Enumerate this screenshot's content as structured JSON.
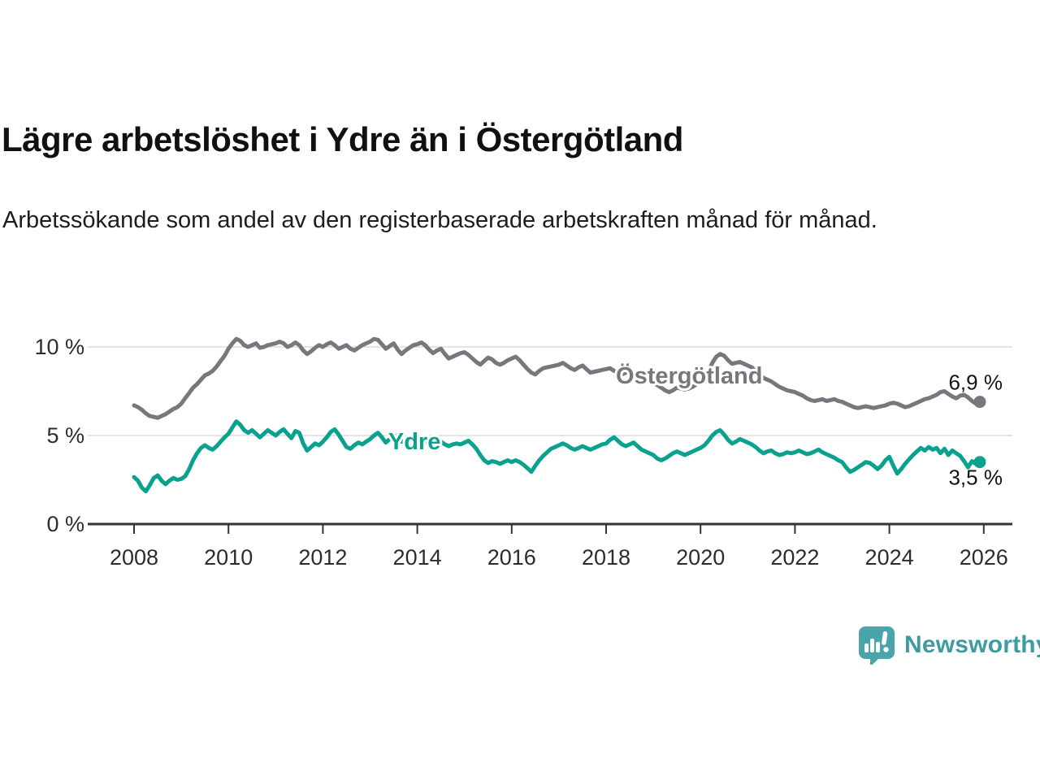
{
  "header": {
    "title": "Lägre arbetslöshet i Ydre än i Östergötland",
    "subtitle": "Arbetssökande som andel av den registerbaserade arbetskraften månad för månad."
  },
  "footer": {
    "brand": "Newsworthy",
    "brand_color": "#3d9ba2",
    "logo_icon": "bar-chart-speech-bubble-icon",
    "logo_color": "#4aa5ab"
  },
  "chart_data": {
    "type": "line",
    "title": "Lägre arbetslöshet i Ydre än i Östergötland",
    "subtitle": "Arbetssökande som andel av den registerbaserade arbetskraften månad för månad.",
    "grid": "horizontal",
    "legend": "inline-labels",
    "x_start_year": 2008,
    "points_per_year": 12,
    "xlim": [
      2007.9,
      2026.6
    ],
    "ylim": [
      0,
      10.9
    ],
    "xticks": [
      2008,
      2010,
      2012,
      2014,
      2016,
      2018,
      2020,
      2022,
      2024,
      2026
    ],
    "yticks": [
      {
        "value": 10,
        "label": "10 %"
      },
      {
        "value": 5,
        "label": "5 %"
      },
      {
        "value": 0,
        "label": "0 %"
      }
    ],
    "colors": {
      "grid": "#dcdcdc",
      "axis": "#333333"
    },
    "series": [
      {
        "name": "Östergötland",
        "color": "#77777d",
        "end_value": 6.9,
        "end_label": "6,9 %",
        "end_label_side": "above",
        "label_at": {
          "year": 2019.76,
          "value": 8.4
        },
        "values": [
          6.7,
          6.6,
          6.45,
          6.25,
          6.1,
          6.05,
          6.0,
          6.1,
          6.2,
          6.35,
          6.5,
          6.6,
          6.8,
          7.1,
          7.4,
          7.7,
          7.9,
          8.15,
          8.4,
          8.5,
          8.65,
          8.9,
          9.2,
          9.5,
          9.9,
          10.2,
          10.45,
          10.35,
          10.1,
          10.0,
          10.1,
          10.2,
          9.95,
          10.0,
          10.1,
          10.15,
          10.2,
          10.3,
          10.2,
          10.0,
          10.1,
          10.25,
          10.1,
          9.8,
          9.6,
          9.75,
          9.95,
          10.1,
          10.0,
          10.15,
          10.25,
          10.1,
          9.9,
          10.0,
          10.1,
          9.9,
          9.8,
          9.95,
          10.1,
          10.2,
          10.3,
          10.45,
          10.4,
          10.15,
          9.9,
          10.05,
          10.2,
          9.85,
          9.6,
          9.8,
          9.95,
          10.1,
          10.15,
          10.25,
          10.1,
          9.85,
          9.65,
          9.8,
          9.9,
          9.6,
          9.35,
          9.45,
          9.55,
          9.65,
          9.7,
          9.55,
          9.35,
          9.15,
          9.0,
          9.2,
          9.4,
          9.3,
          9.1,
          9.0,
          9.1,
          9.25,
          9.35,
          9.45,
          9.25,
          9.0,
          8.75,
          8.55,
          8.45,
          8.65,
          8.8,
          8.85,
          8.9,
          8.95,
          9.0,
          9.1,
          8.95,
          8.8,
          8.7,
          8.85,
          8.95,
          8.75,
          8.55,
          8.6,
          8.65,
          8.7,
          8.75,
          8.8,
          8.65,
          8.55,
          8.45,
          8.55,
          8.6,
          8.4,
          8.2,
          8.1,
          8.05,
          8.0,
          7.95,
          7.85,
          7.7,
          7.55,
          7.45,
          7.55,
          7.7,
          7.65,
          7.6,
          7.65,
          7.75,
          7.9,
          8.1,
          8.2,
          8.6,
          9.1,
          9.45,
          9.6,
          9.5,
          9.25,
          9.05,
          9.1,
          9.15,
          9.05,
          8.95,
          8.85,
          8.65,
          8.45,
          8.25,
          8.15,
          8.05,
          7.9,
          7.75,
          7.65,
          7.55,
          7.5,
          7.45,
          7.35,
          7.25,
          7.1,
          7.0,
          6.95,
          7.0,
          7.05,
          6.95,
          7.0,
          7.05,
          6.95,
          6.9,
          6.8,
          6.7,
          6.6,
          6.55,
          6.6,
          6.65,
          6.6,
          6.55,
          6.6,
          6.65,
          6.7,
          6.8,
          6.85,
          6.8,
          6.7,
          6.6,
          6.65,
          6.75,
          6.85,
          6.95,
          7.05,
          7.1,
          7.2,
          7.3,
          7.45,
          7.5,
          7.35,
          7.2,
          7.1,
          7.25,
          7.3,
          7.15,
          6.95,
          6.8,
          6.9
        ]
      },
      {
        "name": "Ydre",
        "color": "#0aa18e",
        "end_value": 3.5,
        "end_label": "3,5 %",
        "end_label_side": "below",
        "label_at": {
          "year": 2013.94,
          "value": 4.68
        },
        "values": [
          2.65,
          2.45,
          2.05,
          1.85,
          2.2,
          2.6,
          2.75,
          2.45,
          2.25,
          2.45,
          2.6,
          2.5,
          2.55,
          2.7,
          3.1,
          3.6,
          4.0,
          4.3,
          4.45,
          4.3,
          4.2,
          4.4,
          4.65,
          4.9,
          5.1,
          5.45,
          5.8,
          5.6,
          5.3,
          5.15,
          5.3,
          5.1,
          4.9,
          5.1,
          5.3,
          5.15,
          5.0,
          5.2,
          5.35,
          5.1,
          4.85,
          5.25,
          5.15,
          4.55,
          4.15,
          4.35,
          4.55,
          4.45,
          4.65,
          4.9,
          5.2,
          5.35,
          5.05,
          4.7,
          4.35,
          4.25,
          4.45,
          4.6,
          4.5,
          4.65,
          4.8,
          5.0,
          5.15,
          4.9,
          4.6,
          4.8,
          5.05,
          4.85,
          4.65,
          4.7,
          4.75,
          4.65,
          4.75,
          4.85,
          4.7,
          4.55,
          4.45,
          4.55,
          4.65,
          4.5,
          4.4,
          4.5,
          4.55,
          4.5,
          4.6,
          4.7,
          4.5,
          4.25,
          3.9,
          3.6,
          3.45,
          3.55,
          3.5,
          3.4,
          3.5,
          3.6,
          3.5,
          3.6,
          3.5,
          3.35,
          3.15,
          2.95,
          3.3,
          3.6,
          3.85,
          4.05,
          4.25,
          4.35,
          4.45,
          4.55,
          4.45,
          4.3,
          4.2,
          4.3,
          4.4,
          4.3,
          4.2,
          4.3,
          4.4,
          4.5,
          4.55,
          4.75,
          4.9,
          4.7,
          4.5,
          4.4,
          4.5,
          4.6,
          4.4,
          4.2,
          4.1,
          4.0,
          3.9,
          3.7,
          3.6,
          3.7,
          3.85,
          4.0,
          4.1,
          4.0,
          3.9,
          4.0,
          4.1,
          4.2,
          4.3,
          4.45,
          4.7,
          5.0,
          5.2,
          5.3,
          5.05,
          4.75,
          4.55,
          4.65,
          4.8,
          4.7,
          4.6,
          4.5,
          4.35,
          4.15,
          4.0,
          4.1,
          4.15,
          4.0,
          3.9,
          3.95,
          4.05,
          4.0,
          4.05,
          4.15,
          4.05,
          3.95,
          4.0,
          4.1,
          4.2,
          4.05,
          3.95,
          3.85,
          3.75,
          3.6,
          3.5,
          3.2,
          2.95,
          3.05,
          3.2,
          3.35,
          3.5,
          3.45,
          3.3,
          3.1,
          3.3,
          3.6,
          3.8,
          3.3,
          2.85,
          3.1,
          3.4,
          3.65,
          3.9,
          4.1,
          4.3,
          4.15,
          4.35,
          4.2,
          4.3,
          4.0,
          4.25,
          3.9,
          4.15,
          4.0,
          3.85,
          3.55,
          3.2,
          3.55,
          3.4,
          3.5
        ]
      }
    ]
  }
}
